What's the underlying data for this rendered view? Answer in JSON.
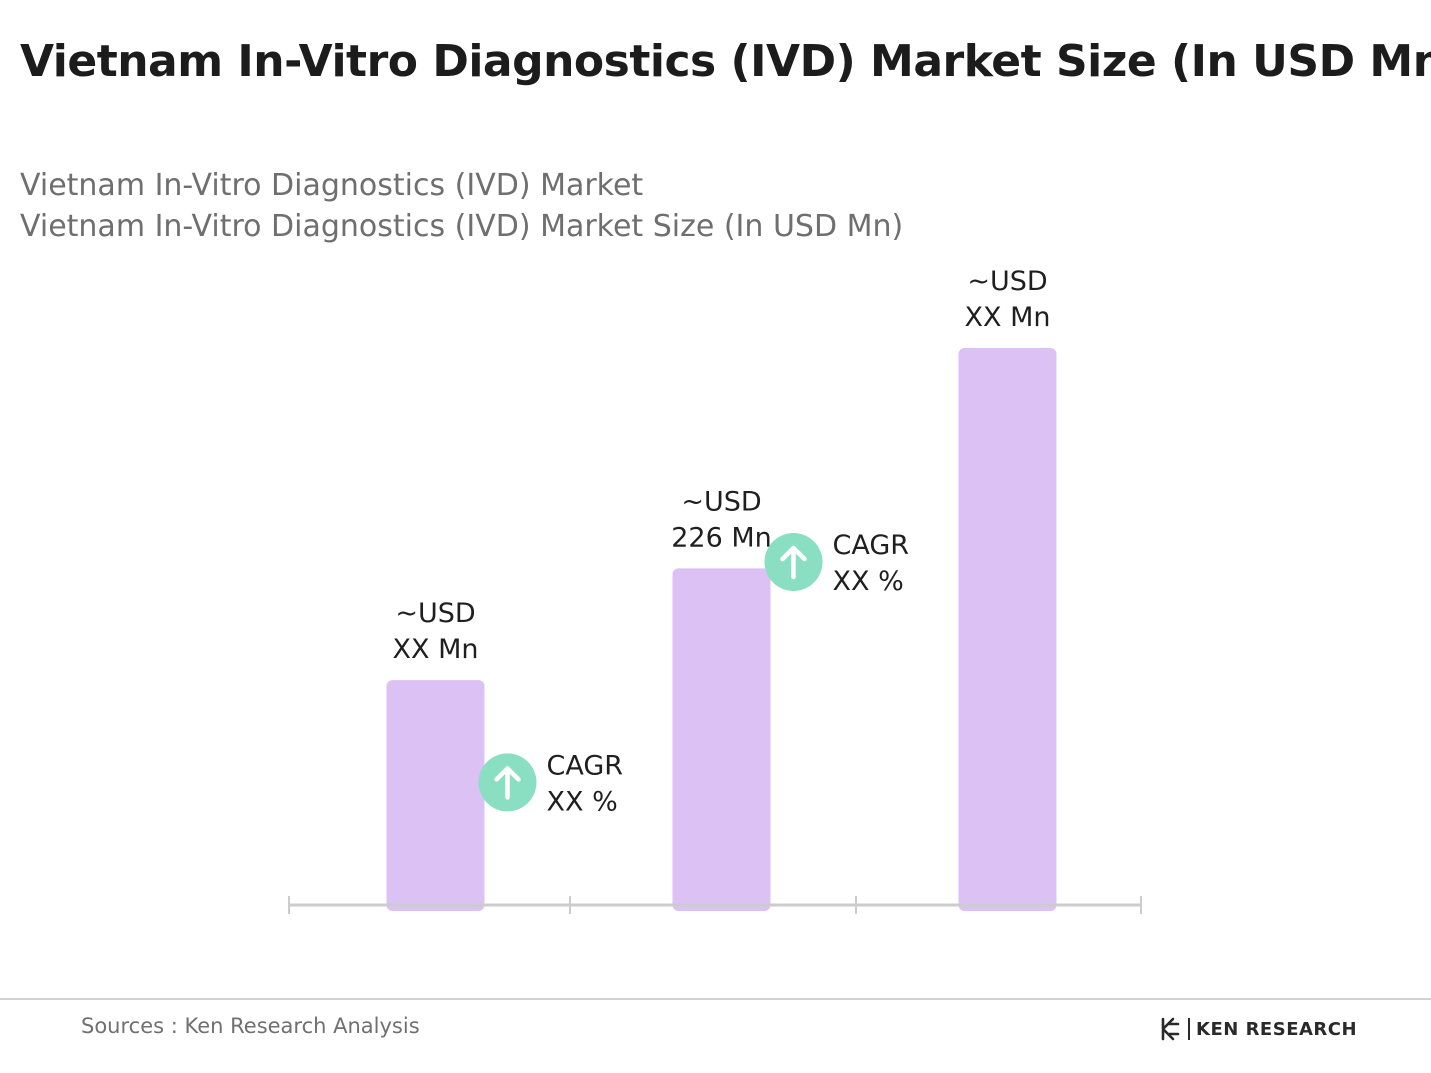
{
  "title": "Vietnam In-Vitro Diagnostics (IVD) Market Size (In USD Mn)",
  "subtitle_line1": "Vietnam In-Vitro Diagnostics (IVD) Market",
  "subtitle_line2": "Vietnam In-Vitro Diagnostics (IVD) Market Size (In USD Mn)",
  "sources": "Sources : Ken Research Analysis",
  "logo_text": "KEN RESEARCH",
  "colors": {
    "bar": "#dcc2f4",
    "cagr_circle": "#8adfc3",
    "axis": "#cccccc",
    "text": "#1f1f1f"
  },
  "chart_data": {
    "type": "bar",
    "categories": [
      "",
      "",
      ""
    ],
    "values": [
      151,
      226,
      374
    ],
    "data_labels": [
      [
        "~USD",
        "XX Mn"
      ],
      [
        "~USD",
        "226 Mn"
      ],
      [
        "~USD",
        "XX Mn"
      ]
    ],
    "cagr_annotations": [
      {
        "between": [
          0,
          1
        ],
        "label": "CAGR",
        "value": "XX %",
        "icon": "arrow-up-icon"
      },
      {
        "between": [
          1,
          2
        ],
        "label": "CAGR",
        "value": "XX %",
        "icon": "arrow-up-icon"
      }
    ],
    "ylim": [
      0,
      420
    ],
    "grid": false,
    "legend": "none"
  }
}
